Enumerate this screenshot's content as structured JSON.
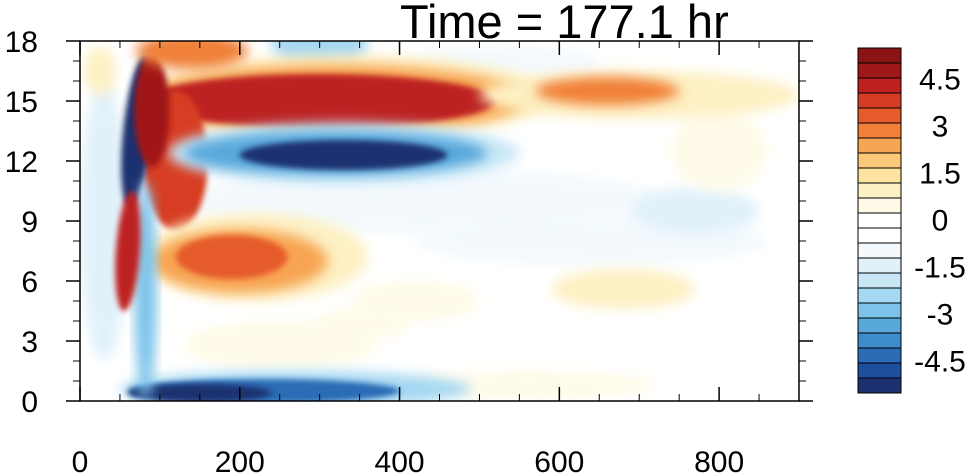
{
  "chart_data": {
    "type": "heatmap",
    "title": "Time = 177.1 hr",
    "xlabel": "",
    "ylabel": "",
    "xlim": [
      0,
      900
    ],
    "ylim": [
      0,
      18
    ],
    "x_ticks": [
      0,
      200,
      400,
      600,
      800
    ],
    "y_ticks": [
      0,
      3,
      6,
      9,
      12,
      15,
      18
    ],
    "colorbar": {
      "levels": [
        -5.5,
        -5,
        -4.5,
        -4,
        -3.5,
        -3,
        -2.5,
        -2,
        -1.5,
        -1,
        -0.5,
        0,
        0.5,
        1,
        1.5,
        2,
        2.5,
        3,
        3.5,
        4,
        4.5,
        5,
        5.5
      ],
      "labels": [
        "4.5",
        "3",
        "1.5",
        "0",
        "-1.5",
        "-3",
        "-4.5"
      ],
      "label_values": [
        4.5,
        3,
        1.5,
        0,
        -1.5,
        -3,
        -4.5
      ],
      "colors": [
        "#1d3070",
        "#1c4f9e",
        "#2a6cb5",
        "#3d8ccb",
        "#58a8dc",
        "#7cc3ea",
        "#a5d8f3",
        "#c7e7f7",
        "#e1f1fa",
        "#f3f9fd",
        "#ffffff",
        "#ffffff",
        "#fffbe8",
        "#fdf0c3",
        "#fde2a0",
        "#fbc977",
        "#f7a552",
        "#f08037",
        "#e65b2a",
        "#d63c22",
        "#bd2020",
        "#a01818",
        "#8b1414"
      ]
    },
    "features": [
      {
        "name": "upper-positive-band",
        "x": [
          60,
          900
        ],
        "y": 15.2,
        "peak": 5.5
      },
      {
        "name": "upper-negative-band",
        "x": [
          110,
          520
        ],
        "y": 12.4,
        "peak": -5.0
      },
      {
        "name": "mid-positive-blob",
        "x": [
          100,
          340
        ],
        "y": 7.2,
        "peak": 3.5
      },
      {
        "name": "surface-negative-band",
        "x": [
          65,
          470
        ],
        "y": 0.5,
        "peak": -5.5
      },
      {
        "name": "vertical-front",
        "x": [
          40,
          90
        ],
        "y": [
          1,
          17
        ],
        "peak": 5.0
      }
    ]
  }
}
